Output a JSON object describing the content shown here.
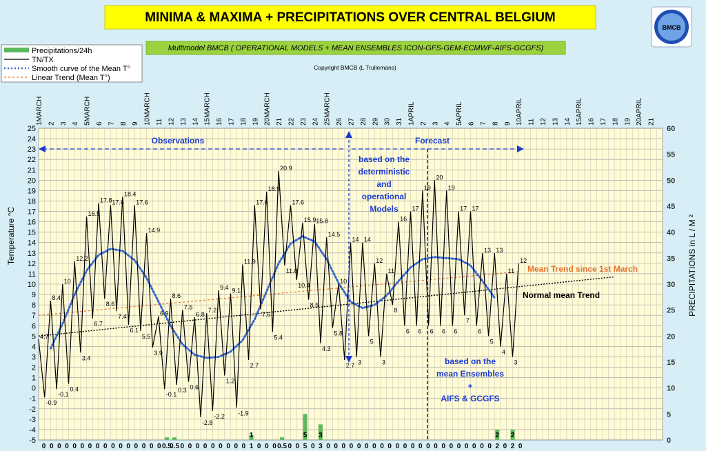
{
  "title": "MINIMA & MAXIMA + PRECIPITATIONS OVER CENTRAL BELGIUM",
  "subtitle": "Multimodel BMCB ( OPERATIONAL MODELS + MEAN ENSEMBLES ICON-GFS-GEM-ECMWF-AIFS-GCGFS)",
  "copyright": "Copyright BMCB (L Trullemans)",
  "logo_text": "BMCB",
  "legend": [
    {
      "label": "Precipitations/24h",
      "color": "#5cb85c",
      "style": "bar"
    },
    {
      "label": "TN/TX",
      "color": "#000000",
      "style": "solid"
    },
    {
      "label": "Smooth curve of the Mean T°",
      "color": "#3366cc",
      "style": "dotted"
    },
    {
      "label": "Linear Trend  (Mean T°)",
      "color": "#e8702a",
      "style": "dashed"
    }
  ],
  "annotations": {
    "observations": "Observations",
    "forecast": "Forecast",
    "deterministic": [
      "based on the",
      "deterministic",
      "and",
      "operational",
      "Models"
    ],
    "ensembles": [
      "based on the",
      "mean Ensembles",
      "+",
      "AIFS & GCGFS"
    ],
    "mean_trend": "Mean Trend since 1st March",
    "normal_trend": "Normal mean Trend"
  },
  "chart_data": {
    "type": "line",
    "x_labels": [
      "1MARCH",
      "2",
      "3",
      "4",
      "5MARCH",
      "6",
      "7",
      "8",
      "9",
      "10MARCH",
      "11",
      "12",
      "13",
      "14",
      "15MARCH",
      "16",
      "17",
      "18",
      "19",
      "20MARCH",
      "21",
      "22",
      "23",
      "24",
      "25MARCH",
      "26",
      "27",
      "28",
      "29",
      "30",
      "31",
      "1APRIL",
      "2",
      "3",
      "4",
      "5APRIL",
      "6",
      "7",
      "8",
      "9",
      "10APRIL",
      "11",
      "12",
      "13",
      "14",
      "15APRIL",
      "16",
      "17",
      "18",
      "19",
      "20APRIL",
      "21"
    ],
    "ylabel": "Temperature   °C",
    "ylabel_right": "PRECIPITATIONS in L / M ²",
    "ylim": [
      -5,
      25
    ],
    "ylim_right": [
      0,
      60
    ],
    "temp_series": {
      "name": "TN/TX",
      "values": [
        4.7,
        -0.9,
        8.4,
        -0.1,
        10.0,
        0.4,
        12.2,
        3.4,
        16.5,
        6.7,
        17.8,
        8.6,
        17.6,
        7.4,
        18.4,
        6.1,
        17.6,
        5.5,
        14.9,
        3.9,
        6.9,
        -0.1,
        8.6,
        0.3,
        7.5,
        0.6,
        6.8,
        -2.8,
        7.2,
        -2.2,
        9.4,
        1.2,
        9.1,
        -1.9,
        11.9,
        2.7,
        17.6,
        7.6,
        18.9,
        5.4,
        20.9,
        11.8,
        17.6,
        10.4,
        15.9,
        8.5,
        15.8,
        4.3,
        14.5,
        5.8,
        10.0,
        2.7,
        14.0,
        3.0,
        14.0,
        5.0,
        12.0,
        3.0,
        11.0,
        8.0,
        16.0,
        6.0,
        17.0,
        6.0,
        19.0,
        6.0,
        20.0,
        6.0,
        19.0,
        6.0,
        17.0,
        7.0,
        17.0,
        6.0,
        13.0,
        5.0,
        13.0,
        4.0,
        11.0,
        3.0,
        12.0
      ],
      "labels": [
        "4.7",
        "-0.9",
        "8.4",
        "-0.1",
        "10",
        "0.4",
        "12.2",
        "3.4",
        "16.5",
        "6.7",
        "17.8",
        "8.6",
        "17.6",
        "7.4",
        "18.4",
        "6.1",
        "17.6",
        "5.5",
        "14.9",
        "3.9",
        "6.9",
        "-0.1",
        "8.6",
        "0.3",
        "7.5",
        "0.6",
        "6.8",
        "-2.8",
        "7.2",
        "-2.2",
        "9.4",
        "1.2",
        "9.1",
        "-1.9",
        "11.9",
        "2.7",
        "17.6",
        "7.6",
        "18.9",
        "5.4",
        "20.9",
        "11.8",
        "17.6",
        "10.4",
        "15.9",
        "8.5",
        "15.8",
        "4.3",
        "14.5",
        "5.8",
        "10",
        "2.7",
        "14",
        "3",
        "14",
        "5",
        "12",
        "3",
        "11",
        "8",
        "16",
        "6",
        "17",
        "6",
        "19",
        "6",
        "20",
        "6",
        "19",
        "6",
        "17",
        "7",
        "17",
        "6",
        "13",
        "5",
        "13",
        "4",
        "11",
        "3",
        "12"
      ]
    },
    "smooth_mean": {
      "name": "Smooth curve of the Mean T°",
      "x": [
        2,
        4,
        6,
        8,
        10,
        12,
        14,
        16,
        18,
        20,
        22,
        24,
        26,
        28,
        30,
        32,
        34,
        36,
        38,
        40,
        42,
        44,
        46,
        48,
        50,
        52,
        54,
        56,
        58,
        60,
        62,
        64,
        66,
        68,
        70,
        72,
        74,
        76
      ],
      "values": [
        3.8,
        6.2,
        9.0,
        11.3,
        12.8,
        13.4,
        13.2,
        12.3,
        10.6,
        8.3,
        6.0,
        4.2,
        3.2,
        2.9,
        3.0,
        3.5,
        4.6,
        6.6,
        9.3,
        12.0,
        13.9,
        14.6,
        14.1,
        12.4,
        10.1,
        8.3,
        7.7,
        8.0,
        8.9,
        10.3,
        11.6,
        12.4,
        12.6,
        12.5,
        12.4,
        11.8,
        10.3,
        8.7
      ]
    },
    "mean_trend": {
      "name": "Mean Trend since 1st March",
      "start": [
        0,
        7.0
      ],
      "end": [
        80,
        11.2
      ]
    },
    "normal_trend": {
      "name": "Normal mean Trend",
      "start": [
        0,
        5.0
      ],
      "end": [
        96,
        10.7
      ]
    },
    "precip_series": {
      "name": "Precipitations/24h",
      "values": [
        0,
        0,
        0,
        0,
        0,
        0,
        0,
        0,
        0,
        0,
        0,
        0,
        0,
        0,
        0,
        0,
        0.5,
        0.5,
        0,
        0,
        0,
        0,
        0,
        0,
        0,
        0,
        0,
        1,
        0,
        0,
        0,
        0.5,
        0,
        0,
        5,
        0,
        3,
        0,
        0,
        0,
        0,
        0,
        0,
        0,
        0,
        0,
        0,
        0,
        0,
        0,
        0,
        0,
        0,
        0,
        0,
        0,
        0,
        0,
        0,
        2,
        0,
        2,
        0
      ],
      "labels": [
        "0",
        "0",
        "0",
        "0",
        "0",
        "0",
        "0",
        "0",
        "0",
        "0",
        "0",
        "0",
        "0",
        "0",
        "0",
        "0",
        "0.5",
        "0.5",
        "0",
        "0",
        "0",
        "0",
        "0",
        "0",
        "0",
        "0",
        "0",
        "1",
        "0",
        "0",
        "0",
        "0.5",
        "0",
        "0",
        "5",
        "0",
        "3",
        "0",
        "0",
        "0",
        "0",
        "0",
        "0",
        "0",
        "0",
        "0",
        "0",
        "0",
        "0",
        "0",
        "0",
        "0",
        "0",
        "0",
        "0",
        "0",
        "0",
        "0",
        "0",
        "2",
        "0",
        "2",
        "0"
      ]
    },
    "grid": true
  }
}
